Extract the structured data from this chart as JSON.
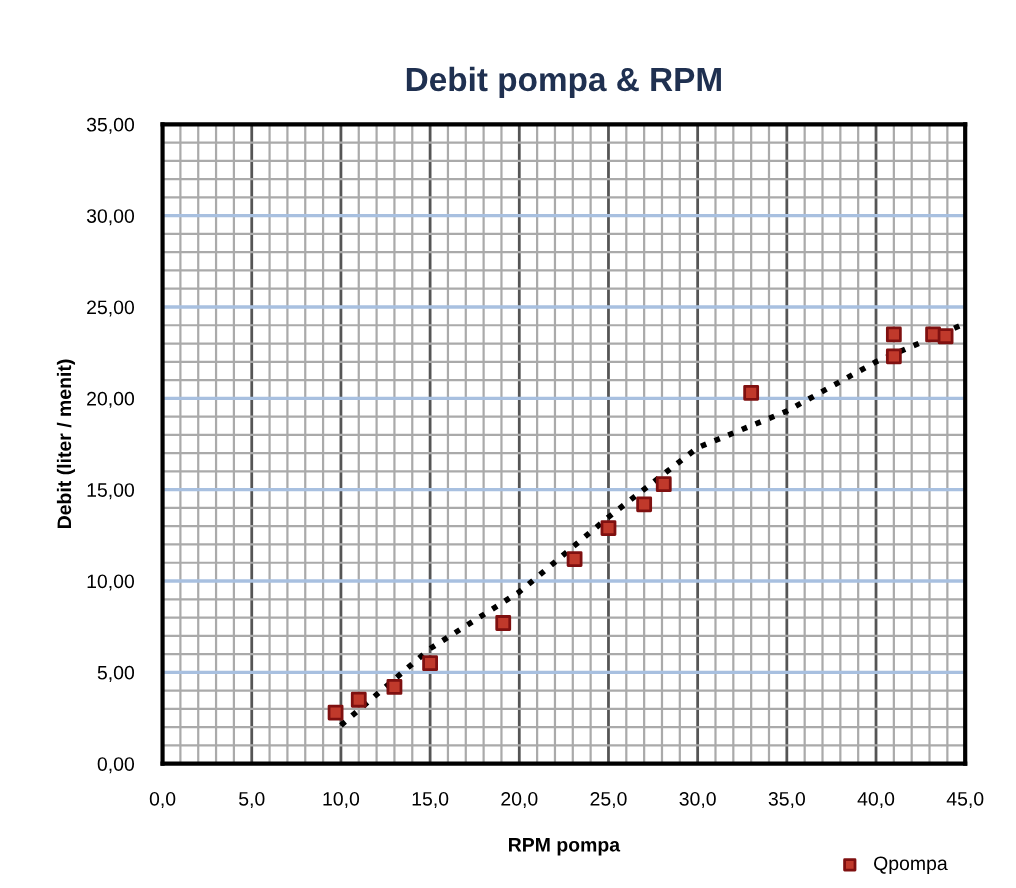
{
  "chart_data": {
    "type": "scatter",
    "title": "Debit pompa & RPM",
    "xlabel": "RPM pompa",
    "ylabel": "Debit (liter / menit)",
    "series": [
      {
        "name": "Qpompa",
        "type": "scatter",
        "color": "#c0392b",
        "marker": "square",
        "x": [
          9.7,
          11.0,
          13.0,
          15.0,
          19.1,
          23.1,
          25.0,
          27.0,
          28.1,
          33.0,
          41.0,
          41.0,
          43.2,
          43.9
        ],
        "values": [
          2.8,
          3.5,
          4.2,
          5.5,
          7.7,
          11.2,
          12.9,
          14.2,
          15.3,
          20.3,
          23.5,
          22.3,
          23.5,
          23.4
        ]
      },
      {
        "type": "line",
        "color": "#000000",
        "line_style": "dotted",
        "marker": "none",
        "x": [
          10,
          15,
          20,
          25,
          30,
          35,
          40,
          45
        ],
        "values": [
          2.1,
          6.3,
          9.4,
          13.5,
          17.3,
          19.3,
          22.0,
          24.1
        ]
      }
    ],
    "xlim": [
      0,
      45
    ],
    "ylim": [
      0,
      35
    ],
    "xticks": [
      {
        "value": 0,
        "label": "0,0"
      },
      {
        "value": 5,
        "label": "5,0"
      },
      {
        "value": 10,
        "label": "10,0"
      },
      {
        "value": 15,
        "label": "15,0"
      },
      {
        "value": 20,
        "label": "20,0"
      },
      {
        "value": 25,
        "label": "25,0"
      },
      {
        "value": 30,
        "label": "30,0"
      },
      {
        "value": 35,
        "label": "35,0"
      },
      {
        "value": 40,
        "label": "40,0"
      },
      {
        "value": 45,
        "label": "45,0"
      }
    ],
    "yticks": [
      {
        "value": 0,
        "label": "0,00"
      },
      {
        "value": 5,
        "label": "5,00"
      },
      {
        "value": 10,
        "label": "10,00"
      },
      {
        "value": 15,
        "label": "15,00"
      },
      {
        "value": 20,
        "label": "20,00"
      },
      {
        "value": 25,
        "label": "25,00"
      },
      {
        "value": 30,
        "label": "30,00"
      },
      {
        "value": 35,
        "label": "35,00"
      }
    ],
    "grid": true,
    "legend": "bottom right"
  }
}
